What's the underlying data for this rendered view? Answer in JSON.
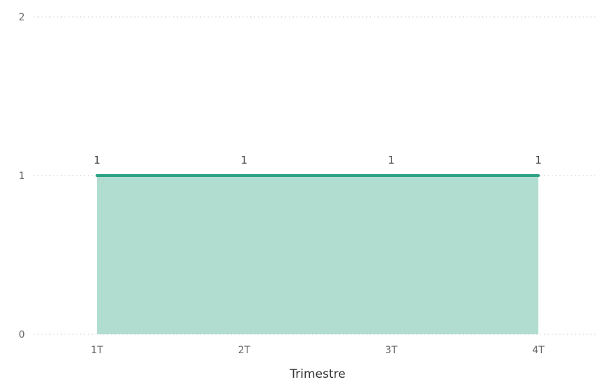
{
  "chart_data": {
    "type": "area",
    "categories": [
      "1T",
      "2T",
      "3T",
      "4T"
    ],
    "series": [
      {
        "values": [
          1,
          1,
          1,
          1
        ]
      }
    ],
    "data_labels": [
      "1",
      "1",
      "1",
      "1"
    ],
    "title": "",
    "xlabel": "Trimestre",
    "ylabel": "",
    "ylim": [
      0,
      2
    ],
    "yticks": [
      0,
      1,
      2
    ],
    "grid": true,
    "legend": "none",
    "colors": {
      "line": "#2ba283",
      "fill": "#b0ddd0",
      "grid": "#c8c8c8"
    }
  }
}
